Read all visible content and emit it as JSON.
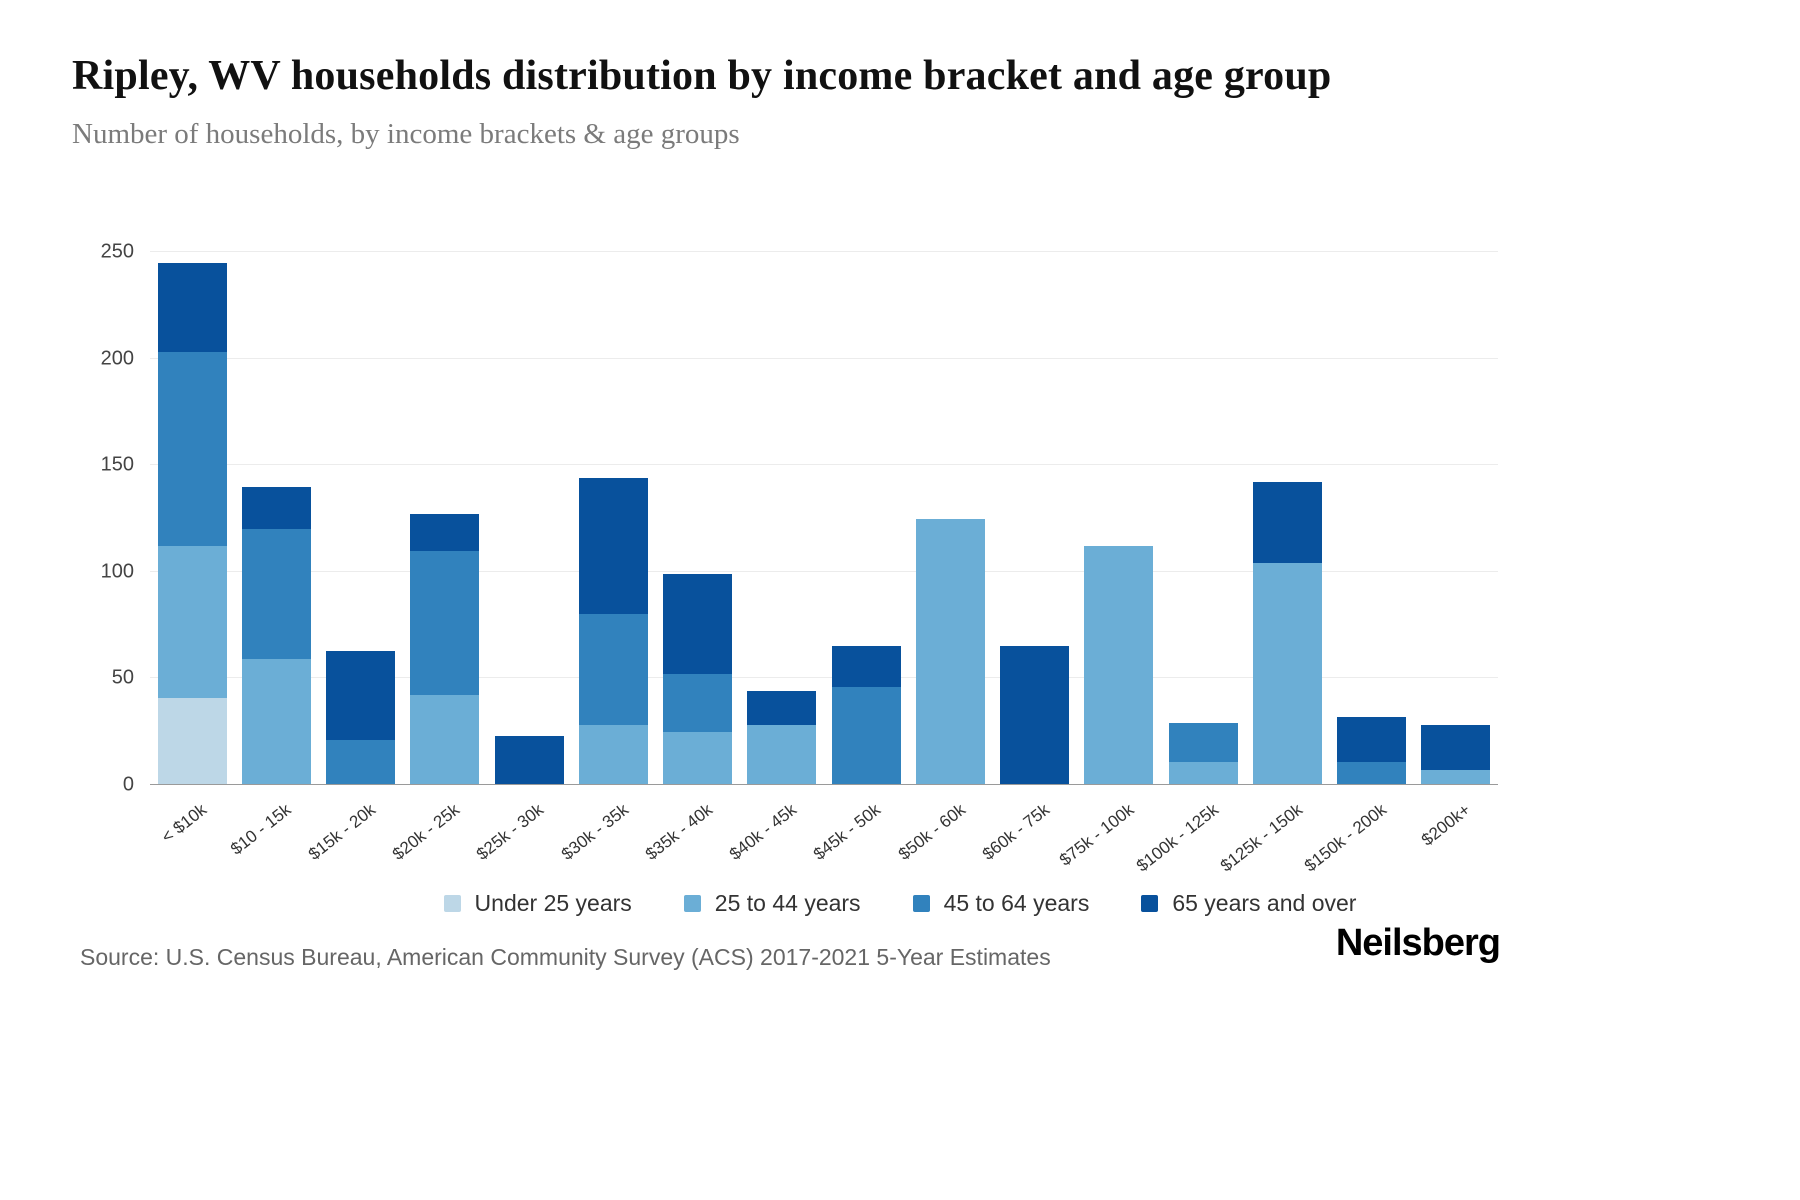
{
  "header": {
    "title": "Ripley, WV households distribution by income bracket and age group",
    "subtitle": "Number of households, by income brackets & age groups"
  },
  "chart_data": {
    "type": "bar",
    "stacked": true,
    "title": "Ripley, WV households distribution by income bracket and age group",
    "xlabel": "",
    "ylabel": "Number of households",
    "ylim": [
      0,
      250
    ],
    "yticks": [
      0,
      50,
      100,
      150,
      200,
      250
    ],
    "grid": true,
    "legend_position": "bottom",
    "categories": [
      "< $10k",
      "$10 - 15k",
      "$15k - 20k",
      "$20k - 25k",
      "$25k - 30k",
      "$30k - 35k",
      "$35k - 40k",
      "$40k - 45k",
      "$45k - 50k",
      "$50k - 60k",
      "$60k - 75k",
      "$75k - 100k",
      "$100k - 125k",
      "$125k - 150k",
      "$150k - 200k",
      "$200k+"
    ],
    "series": [
      {
        "name": "Under 25 years",
        "color": "#bdd7e7",
        "values": [
          41,
          0,
          0,
          0,
          0,
          0,
          0,
          0,
          0,
          0,
          0,
          0,
          0,
          0,
          0,
          0
        ]
      },
      {
        "name": "25 to 44 years",
        "color": "#6baed6",
        "values": [
          71,
          59,
          0,
          42,
          0,
          28,
          25,
          28,
          0,
          125,
          0,
          112,
          11,
          104,
          0,
          7
        ]
      },
      {
        "name": "45 to 64 years",
        "color": "#3182bd",
        "values": [
          91,
          61,
          21,
          68,
          0,
          52,
          27,
          0,
          46,
          0,
          0,
          0,
          18,
          0,
          11,
          0
        ]
      },
      {
        "name": "65 years and over",
        "color": "#08519c",
        "values": [
          42,
          20,
          42,
          17,
          23,
          64,
          47,
          16,
          19,
          0,
          65,
          0,
          0,
          38,
          21,
          21
        ]
      }
    ]
  },
  "footer": {
    "source": "Source: U.S. Census Bureau, American Community Survey (ACS) 2017-2021 5-Year Estimates",
    "brand": "Neilsberg"
  }
}
